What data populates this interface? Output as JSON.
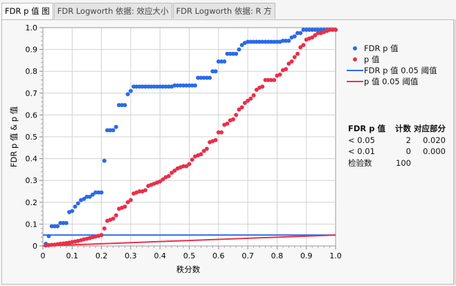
{
  "tabs": [
    {
      "label": "FDR p 值 图",
      "active": true
    },
    {
      "label": "FDR Logworth 依据: 效应大小",
      "active": false
    },
    {
      "label": "FDR Logworth 依据: R 方",
      "active": false
    }
  ],
  "legend": [
    {
      "label": "FDR p 值",
      "kind": "dot",
      "color": "#2a6ae8"
    },
    {
      "label": "p 值",
      "kind": "dot",
      "color": "#e8304a"
    },
    {
      "label": "FDR p 值 0.05 阈值",
      "kind": "line",
      "color": "#2a6ae8"
    },
    {
      "label": "p 值 0.05 阈值",
      "kind": "line",
      "color": "#e8304a"
    }
  ],
  "summary": {
    "headers": [
      "FDR p 值",
      "计数",
      "对应部分"
    ],
    "rows": [
      [
        "< 0.05",
        "2",
        "0.020"
      ],
      [
        "< 0.01",
        "0",
        "0.000"
      ],
      [
        "检验数",
        "100",
        ""
      ]
    ]
  },
  "chart_data": {
    "type": "scatter",
    "xlabel": "秩分数",
    "ylabel": "FDR p 值 & p 值",
    "xlim": [
      0,
      1
    ],
    "ylim": [
      0,
      1
    ],
    "grid": true,
    "legend_position": "right",
    "xticks": [
      "0",
      "0.1",
      "0.2",
      "0.3",
      "0.4",
      "0.5",
      "0.6",
      "0.7",
      "0.8",
      "0.9",
      "1.0"
    ],
    "yticks": [
      "0",
      "0.1",
      "0.2",
      "0.3",
      "0.4",
      "0.5",
      "0.6",
      "0.7",
      "0.8",
      "0.9",
      "1.0"
    ],
    "series": [
      {
        "name": "FDR p 值",
        "color": "#2a6ae8",
        "y": [
          0.01,
          0.045,
          0.09,
          0.09,
          0.09,
          0.105,
          0.105,
          0.105,
          0.155,
          0.16,
          0.18,
          0.195,
          0.21,
          0.215,
          0.225,
          0.225,
          0.235,
          0.245,
          0.245,
          0.245,
          0.39,
          0.53,
          0.53,
          0.53,
          0.545,
          0.645,
          0.645,
          0.645,
          0.695,
          0.71,
          0.73,
          0.73,
          0.73,
          0.73,
          0.73,
          0.73,
          0.73,
          0.73,
          0.73,
          0.73,
          0.73,
          0.73,
          0.73,
          0.73,
          0.735,
          0.735,
          0.735,
          0.735,
          0.735,
          0.735,
          0.735,
          0.735,
          0.77,
          0.77,
          0.77,
          0.77,
          0.77,
          0.8,
          0.8,
          0.845,
          0.845,
          0.845,
          0.88,
          0.88,
          0.88,
          0.88,
          0.9,
          0.92,
          0.93,
          0.935,
          0.935,
          0.935,
          0.935,
          0.935,
          0.935,
          0.935,
          0.935,
          0.935,
          0.935,
          0.935,
          0.935,
          0.94,
          0.94,
          0.94,
          0.955,
          0.96,
          0.975,
          0.975,
          0.99,
          0.99,
          0.99,
          0.99,
          0.99,
          0.99,
          0.99,
          0.99,
          0.99,
          0.99,
          0.99,
          0.99
        ]
      },
      {
        "name": "p 值",
        "color": "#e8304a",
        "y": [
          0.002,
          0.004,
          0.005,
          0.006,
          0.008,
          0.01,
          0.011,
          0.013,
          0.015,
          0.018,
          0.02,
          0.023,
          0.026,
          0.03,
          0.033,
          0.036,
          0.04,
          0.043,
          0.046,
          0.05,
          0.08,
          0.115,
          0.12,
          0.125,
          0.14,
          0.17,
          0.175,
          0.18,
          0.2,
          0.21,
          0.24,
          0.245,
          0.25,
          0.25,
          0.255,
          0.275,
          0.28,
          0.285,
          0.29,
          0.295,
          0.305,
          0.315,
          0.32,
          0.335,
          0.345,
          0.355,
          0.36,
          0.365,
          0.365,
          0.375,
          0.395,
          0.41,
          0.415,
          0.42,
          0.435,
          0.445,
          0.475,
          0.48,
          0.485,
          0.52,
          0.52,
          0.555,
          0.56,
          0.575,
          0.58,
          0.6,
          0.625,
          0.635,
          0.655,
          0.665,
          0.675,
          0.69,
          0.715,
          0.725,
          0.73,
          0.76,
          0.76,
          0.76,
          0.76,
          0.78,
          0.785,
          0.805,
          0.81,
          0.835,
          0.845,
          0.865,
          0.88,
          0.91,
          0.92,
          0.945,
          0.95,
          0.955,
          0.965,
          0.975,
          0.975,
          0.98,
          0.985,
          0.99,
          0.99,
          0.99
        ]
      }
    ],
    "reference_lines": [
      {
        "name": "FDR p 值 0.05 阈值",
        "color": "#2a6ae8",
        "from": [
          0,
          0.05
        ],
        "to": [
          1,
          0.05
        ]
      },
      {
        "name": "p 值 0.05 阈值",
        "color": "#e8304a",
        "from": [
          0,
          0
        ],
        "to": [
          1,
          0.05
        ]
      }
    ]
  }
}
